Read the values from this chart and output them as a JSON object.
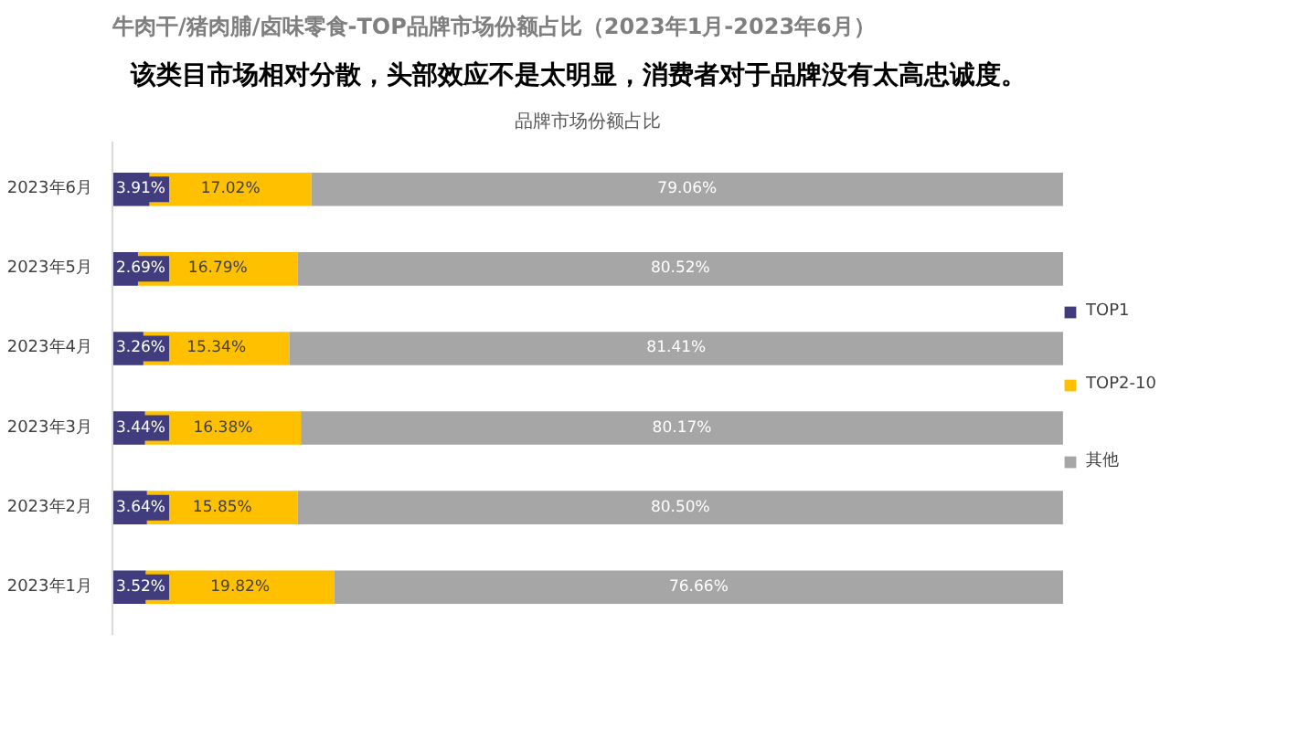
{
  "chart_data": {
    "type": "bar",
    "orientation": "horizontal",
    "stacked": true,
    "xlim": [
      0,
      100
    ],
    "tick_labels": "y",
    "title": "牛肉干/猪肉脯/卤味零食-TOP品牌市场份额占比（2023年1月-2023年6月）",
    "subtitle": "该类目市场相对分散，头部效应不是太明显，消费者对于品牌没有太高忠诚度。",
    "annotations": [
      "品牌市场份额占比"
    ],
    "categories": [
      "2023年6月",
      "2023年5月",
      "2023年4月",
      "2023年3月",
      "2023年2月",
      "2023年1月"
    ],
    "series": [
      {
        "name": "TOP1",
        "color": "#403c7e",
        "values": [
          3.91,
          2.69,
          3.26,
          3.44,
          3.64,
          3.52
        ],
        "value_labels": [
          "3.91%",
          "2.69%",
          "3.26%",
          "3.44%",
          "3.64%",
          "3.52%"
        ]
      },
      {
        "name": "TOP2-10",
        "color": "#ffc000",
        "values": [
          17.02,
          16.79,
          15.34,
          16.38,
          15.85,
          19.82
        ],
        "value_labels": [
          "17.02%",
          "16.79%",
          "15.34%",
          "16.38%",
          "15.85%",
          "19.82%"
        ]
      },
      {
        "name": "其他",
        "color": "#a6a6a6",
        "values": [
          79.06,
          80.52,
          81.41,
          80.17,
          80.5,
          76.66
        ],
        "value_labels": [
          "79.06%",
          "80.52%",
          "81.41%",
          "80.17%",
          "80.50%",
          "76.66%"
        ]
      }
    ],
    "legend": "right",
    "grid": false
  }
}
